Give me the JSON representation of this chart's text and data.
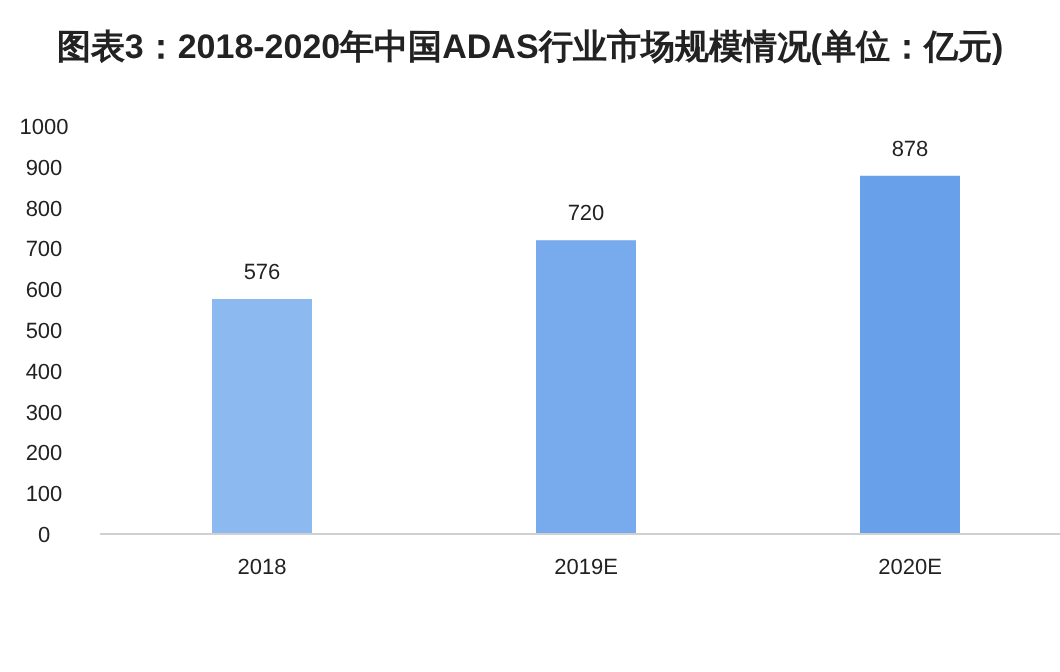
{
  "chart_data": {
    "type": "bar",
    "title": "图表3：2018-2020年中国ADAS行业市场规模情况(单位：亿元)",
    "categories": [
      "2018",
      "2019E",
      "2020E"
    ],
    "values": [
      576,
      720,
      878
    ],
    "colors": [
      "#8db9f1",
      "#78abee",
      "#68a0e9"
    ],
    "ylim": [
      0,
      1000
    ],
    "yticks": [
      0,
      100,
      200,
      300,
      400,
      500,
      600,
      700,
      800,
      900,
      1000
    ],
    "data_labels": true,
    "grid": false
  }
}
